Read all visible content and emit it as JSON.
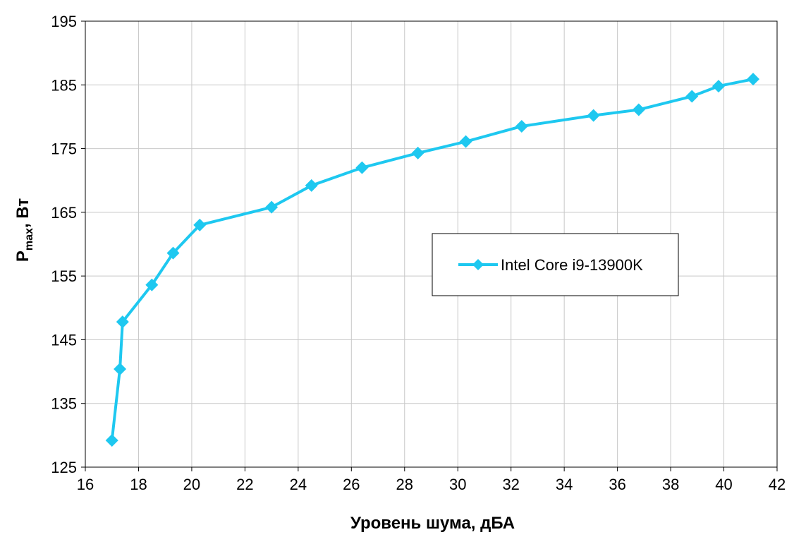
{
  "chart_data": {
    "type": "line",
    "xlabel": "Уровень шума, дБА",
    "ylabel": {
      "main": "P",
      "sub": "max",
      "rest": ", Вт"
    },
    "xlim": [
      16,
      42
    ],
    "ylim": [
      125,
      195
    ],
    "xticks": [
      16,
      18,
      20,
      22,
      24,
      26,
      28,
      30,
      32,
      34,
      36,
      38,
      40,
      42
    ],
    "yticks": [
      125,
      135,
      145,
      155,
      165,
      175,
      185,
      195
    ],
    "grid": true,
    "legend_position": "center-right",
    "series": [
      {
        "name": "Intel Core i9-13900K",
        "color": "#1ec8f0",
        "marker": "diamond",
        "x": [
          17.0,
          17.3,
          17.4,
          18.5,
          19.3,
          20.3,
          23.0,
          24.5,
          26.4,
          28.5,
          30.3,
          32.4,
          35.1,
          36.8,
          38.8,
          39.8,
          41.1
        ],
        "y": [
          129.2,
          140.4,
          147.8,
          153.6,
          158.6,
          163.0,
          165.8,
          169.2,
          172.0,
          174.3,
          176.1,
          178.5,
          180.2,
          181.1,
          183.2,
          184.8,
          185.9
        ]
      }
    ]
  }
}
